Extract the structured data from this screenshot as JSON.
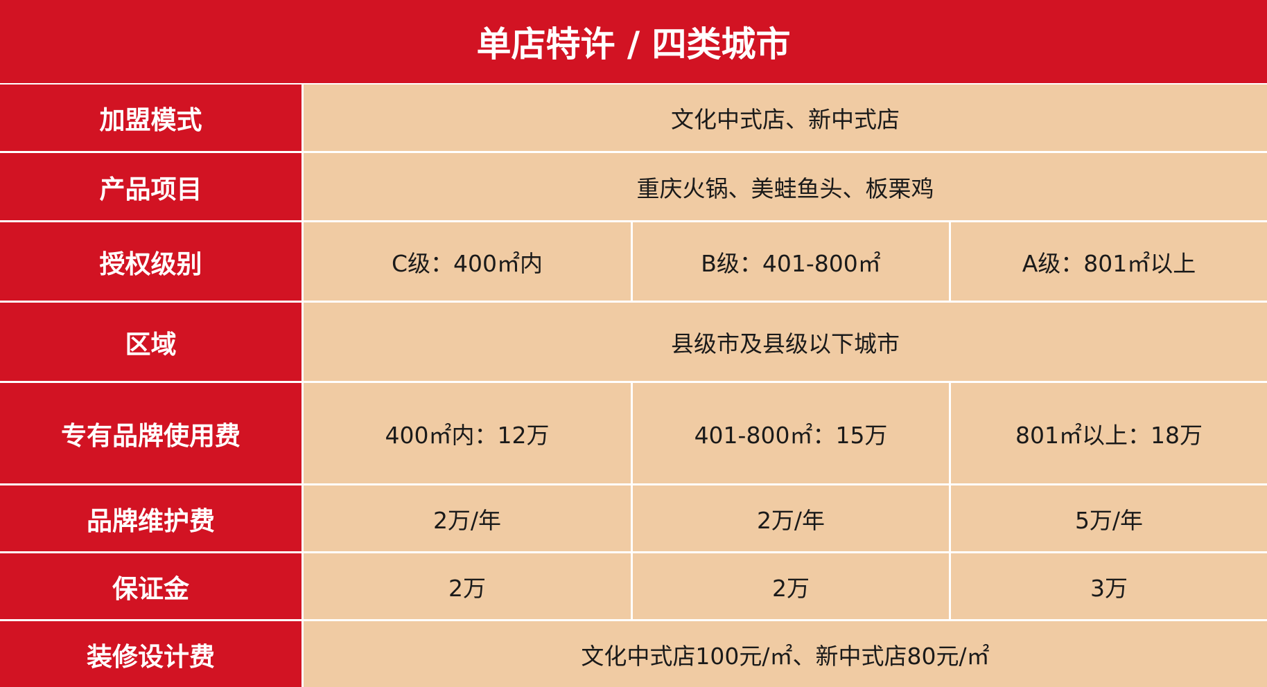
{
  "title": "单店特许 / 四类城市",
  "colors": {
    "header_red": "#d21323",
    "cell_beige": "#f0cba3"
  },
  "rows": [
    {
      "label": "加盟模式",
      "values": [
        "文化中式店、新中式店"
      ]
    },
    {
      "label": "产品项目",
      "values": [
        "重庆火锅、美蛙鱼头、板栗鸡"
      ]
    },
    {
      "label": "授权级别",
      "values": [
        "C级：400㎡内",
        "B级：401-800㎡",
        "A级：801㎡以上"
      ]
    },
    {
      "label": "区域",
      "values": [
        "县级市及县级以下城市"
      ]
    },
    {
      "label": "专有品牌使用费",
      "values": [
        "400㎡内：12万",
        "401-800㎡：15万",
        "801㎡以上：18万"
      ]
    },
    {
      "label": "品牌维护费",
      "values": [
        "2万/年",
        "2万/年",
        "5万/年"
      ]
    },
    {
      "label": "保证金",
      "values": [
        "2万",
        "2万",
        "3万"
      ]
    },
    {
      "label": "装修设计费",
      "values": [
        "文化中式店100元/㎡、新中式店80元/㎡"
      ]
    }
  ]
}
